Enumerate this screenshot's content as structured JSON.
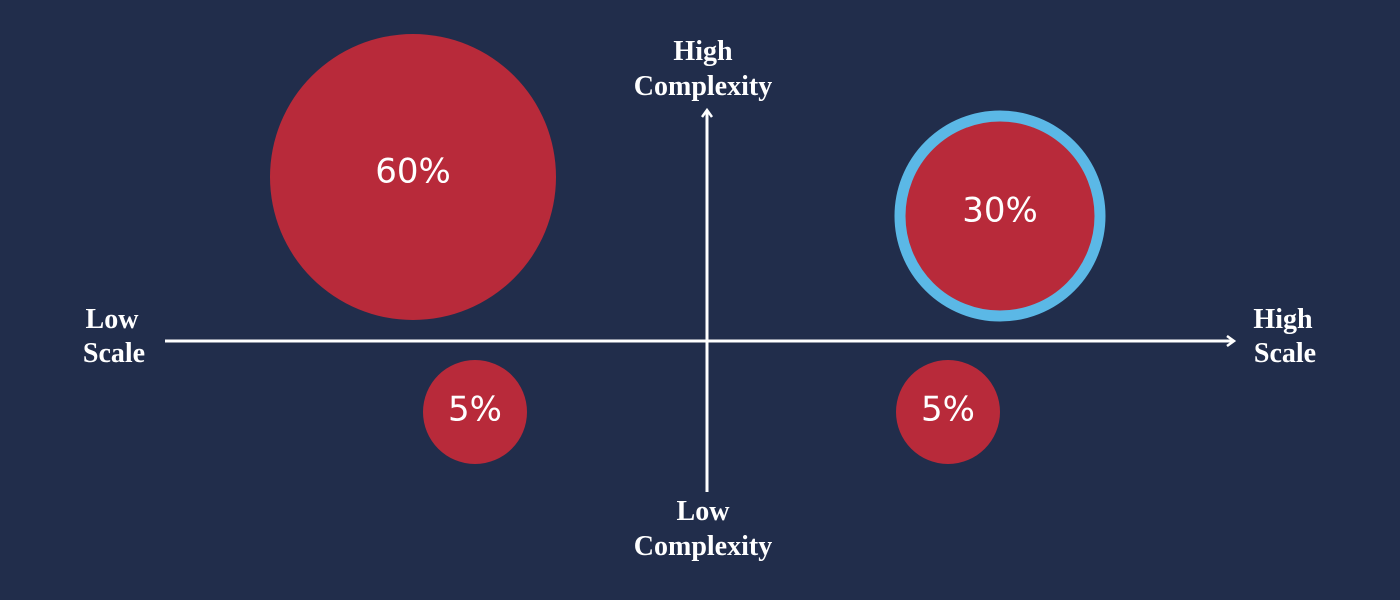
{
  "axes": {
    "top": [
      "High",
      "Complexity"
    ],
    "bottom": [
      "Low",
      "Complexity"
    ],
    "left": [
      "Low",
      "Scale"
    ],
    "right": [
      "High",
      "Scale"
    ]
  },
  "bubbles": [
    {
      "label": "60%"
    },
    {
      "label": "30%"
    },
    {
      "label": "5%"
    },
    {
      "label": "5%"
    }
  ]
}
